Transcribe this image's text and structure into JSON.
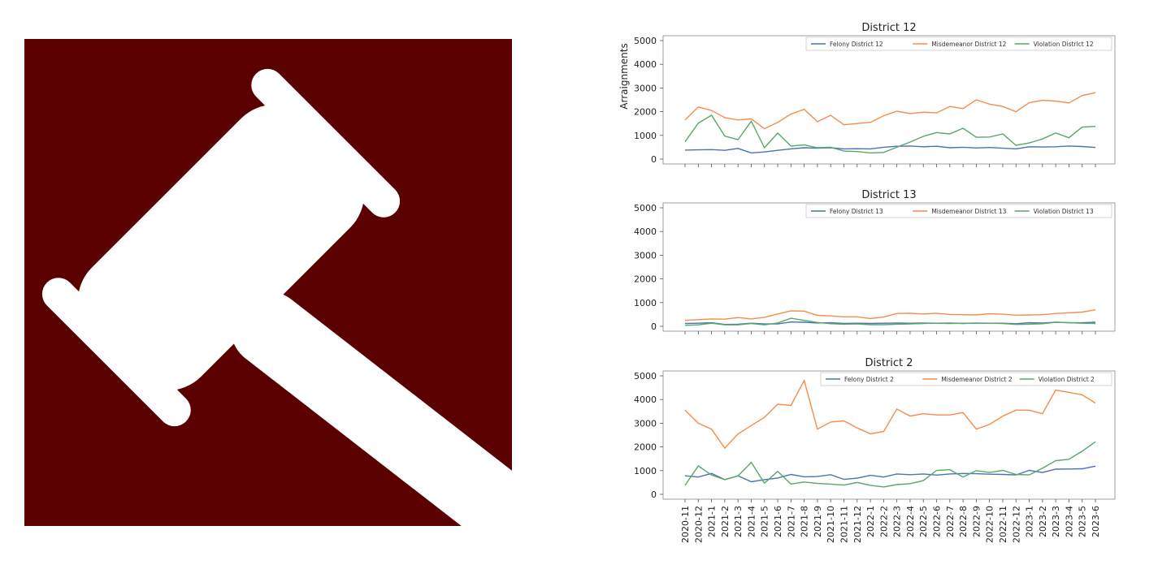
{
  "colors": {
    "logo_background": "#5a0000",
    "felony": "#4c72b0",
    "misdemeanor": "#f68c4a",
    "violation": "#55a868"
  },
  "logo": {
    "icon": "gavel-icon"
  },
  "chart_data": {
    "type": "line",
    "ylabel": "Arraignments",
    "ylim": [
      0,
      5000
    ],
    "yticks": [
      0,
      1000,
      2000,
      3000,
      4000,
      5000
    ],
    "legend_placement": "top-right",
    "categories": [
      "2020-11",
      "2020-12",
      "2021-1",
      "2021-2",
      "2021-3",
      "2021-4",
      "2021-5",
      "2021-6",
      "2021-7",
      "2021-8",
      "2021-9",
      "2021-10",
      "2021-11",
      "2021-12",
      "2022-1",
      "2022-2",
      "2022-3",
      "2022-4",
      "2022-5",
      "2022-6",
      "2022-7",
      "2022-8",
      "2022-9",
      "2022-10",
      "2022-11",
      "2022-12",
      "2023-1",
      "2023-2",
      "2023-3",
      "2023-4",
      "2023-5",
      "2023-6"
    ],
    "panels": [
      {
        "title": "District 12",
        "series": [
          {
            "name": "Felony District 12",
            "values": [
              380,
              390,
              400,
              370,
              450,
              260,
              300,
              370,
              430,
              480,
              460,
              480,
              430,
              440,
              430,
              500,
              540,
              550,
              520,
              540,
              480,
              500,
              470,
              490,
              460,
              430,
              520,
              510,
              520,
              550,
              530,
              490
            ]
          },
          {
            "name": "Misdemeanor District 12",
            "values": [
              1650,
              2200,
              2050,
              1750,
              1650,
              1700,
              1280,
              1550,
              1900,
              2100,
              1580,
              1850,
              1450,
              1500,
              1550,
              1830,
              2020,
              1920,
              1980,
              1950,
              2220,
              2130,
              2500,
              2320,
              2220,
              2000,
              2380,
              2480,
              2450,
              2370,
              2680,
              2800
            ]
          },
          {
            "name": "Violation District 12",
            "values": [
              730,
              1520,
              1850,
              970,
              820,
              1600,
              480,
              1100,
              550,
              600,
              480,
              500,
              340,
              320,
              260,
              280,
              500,
              720,
              960,
              1120,
              1060,
              1300,
              920,
              930,
              1060,
              580,
              680,
              850,
              1100,
              900,
              1350,
              1380
            ]
          }
        ]
      },
      {
        "title": "District 13",
        "series": [
          {
            "name": "Felony District 13",
            "values": [
              120,
              130,
              150,
              80,
              90,
              130,
              100,
              100,
              180,
              170,
              140,
              150,
              120,
              130,
              120,
              130,
              140,
              130,
              140,
              130,
              140,
              120,
              140,
              130,
              130,
              110,
              150,
              140,
              170,
              150,
              150,
              170
            ]
          },
          {
            "name": "Misdemeanor District 13",
            "values": [
              250,
              280,
              310,
              300,
              370,
              310,
              380,
              520,
              650,
              640,
              460,
              440,
              400,
              400,
              330,
              390,
              540,
              550,
              520,
              550,
              500,
              490,
              480,
              530,
              510,
              470,
              480,
              490,
              540,
              570,
              600,
              700
            ]
          },
          {
            "name": "Violation District 13",
            "values": [
              40,
              60,
              130,
              60,
              60,
              120,
              60,
              140,
              340,
              250,
              160,
              110,
              90,
              100,
              70,
              70,
              90,
              100,
              120,
              130,
              120,
              130,
              130,
              130,
              120,
              80,
              90,
              110,
              170,
              150,
              130,
              120
            ]
          }
        ]
      },
      {
        "title": "District 2",
        "series": [
          {
            "name": "Felony District 2",
            "values": [
              780,
              730,
              880,
              620,
              780,
              530,
              620,
              690,
              840,
              740,
              750,
              830,
              630,
              680,
              800,
              730,
              860,
              830,
              860,
              810,
              860,
              880,
              870,
              850,
              840,
              820,
              1010,
              920,
              1060,
              1070,
              1080,
              1190
            ]
          },
          {
            "name": "Misdemeanor District 2",
            "values": [
              3550,
              3000,
              2750,
              1950,
              2550,
              2900,
              3250,
              3800,
              3750,
              4800,
              2750,
              3050,
              3100,
              2800,
              2550,
              2650,
              3600,
              3300,
              3400,
              3350,
              3350,
              3450,
              2750,
              2950,
              3300,
              3550,
              3550,
              3400,
              4400,
              4300,
              4200,
              3850
            ]
          },
          {
            "name": "Violation District 2",
            "values": [
              380,
              1200,
              810,
              620,
              780,
              1350,
              470,
              970,
              430,
              520,
              460,
              430,
              390,
              500,
              380,
              310,
              410,
              450,
              580,
              1010,
              1040,
              730,
              1000,
              920,
              1010,
              840,
              820,
              1100,
              1420,
              1480,
              1820,
              2220
            ]
          }
        ]
      }
    ]
  }
}
